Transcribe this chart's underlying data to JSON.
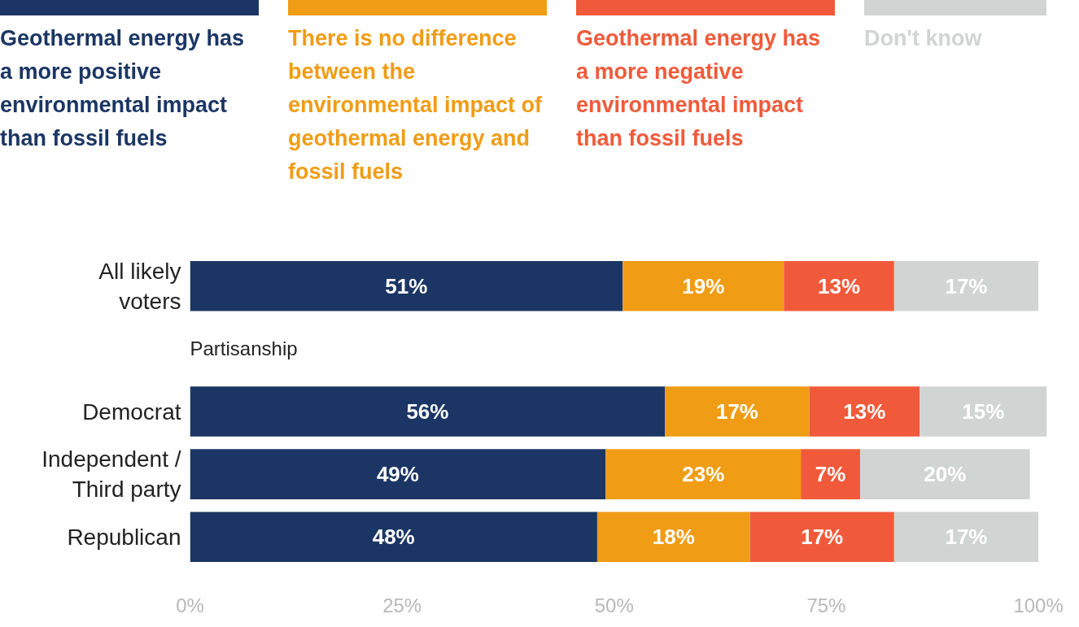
{
  "chart_data": {
    "type": "bar",
    "orientation": "horizontal",
    "stacked": true,
    "legend": "top",
    "grid": false,
    "categories": [
      "All likely voters",
      null,
      "Democrat",
      "Independent / Third party",
      "Republican"
    ],
    "series": [
      {
        "name": "Geothermal energy has a more positive environmental impact than fossil fuels",
        "color": "#1b3664",
        "values": [
          51,
          null,
          56,
          49,
          48
        ],
        "value_labels": [
          "51%",
          null,
          "56%",
          "49%",
          "48%"
        ]
      },
      {
        "name": "There is no difference between the environmental impact of geothermal energy and fossil fuels",
        "color": "#f09c15",
        "values": [
          19,
          null,
          17,
          23,
          18
        ],
        "value_labels": [
          "19%",
          null,
          "17%",
          "23%",
          "18%"
        ]
      },
      {
        "name": "Geothermal energy has a more negative environmental impact than fossil fuels",
        "color": "#f05a3a",
        "values": [
          13,
          null,
          13,
          7,
          17
        ],
        "value_labels": [
          "13%",
          null,
          "13%",
          "7%",
          "17%"
        ]
      },
      {
        "name": "Don't know",
        "color": "#d0d4d3",
        "values": [
          17,
          null,
          15,
          20,
          17
        ],
        "value_labels": [
          "17%",
          null,
          "15%",
          "20%",
          "17%"
        ]
      }
    ],
    "annotations": [
      "Partisanship"
    ],
    "xlim": [
      0,
      101
    ],
    "xticks": [
      {
        "value": 0,
        "label": "0%"
      },
      {
        "value": 25,
        "label": "25%"
      },
      {
        "value": 50,
        "label": "50%"
      },
      {
        "value": 75,
        "label": "75%"
      },
      {
        "value": 100,
        "label": "100%"
      }
    ]
  }
}
